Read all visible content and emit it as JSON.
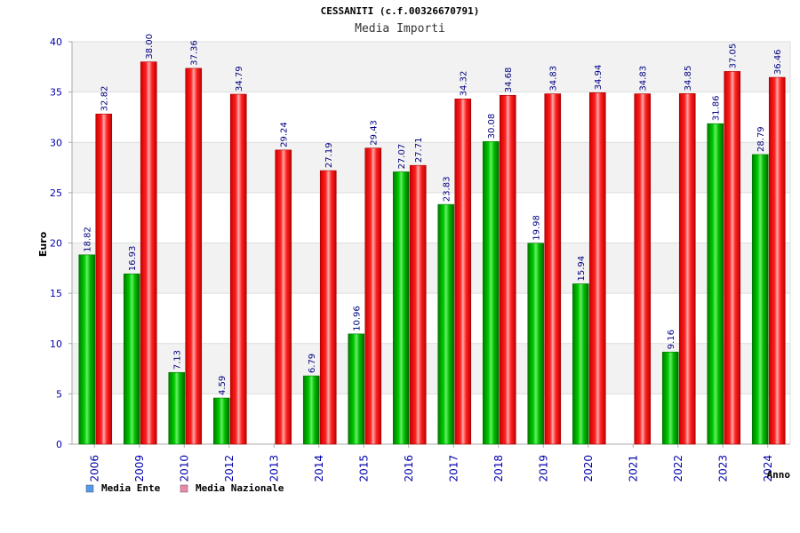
{
  "chart_data": {
    "type": "bar",
    "title": "CESSANITI (c.f.00326670791)",
    "subtitle": "Media Importi",
    "xlabel": "Anno",
    "ylabel": "Euro",
    "ylim": [
      0,
      40
    ],
    "yticks": [
      "0",
      "5",
      "10",
      "15",
      "20",
      "25",
      "30",
      "35",
      "40"
    ],
    "grid": true,
    "categories": [
      "2006",
      "2009",
      "2010",
      "2012",
      "2013",
      "2014",
      "2015",
      "2016",
      "2017",
      "2018",
      "2019",
      "2020",
      "2021",
      "2022",
      "2023",
      "2024"
    ],
    "series": [
      {
        "name": "Media Ente",
        "color": "#00aa00",
        "values": [
          18.82,
          16.93,
          7.13,
          4.59,
          null,
          6.79,
          10.96,
          27.07,
          23.83,
          30.08,
          19.98,
          15.94,
          null,
          9.16,
          31.86,
          28.79
        ],
        "labels": [
          "18.82",
          "16.93",
          "7.13",
          "4.59",
          "",
          "6.79",
          "10.96",
          "27.07",
          "23.83",
          "30.08",
          "19.98",
          "15.94",
          "",
          "9.16",
          "31.86",
          "28.79"
        ]
      },
      {
        "name": "Media Nazionale",
        "color": "#ee1111",
        "values": [
          32.82,
          38.0,
          37.36,
          34.79,
          29.24,
          27.19,
          29.43,
          27.71,
          34.32,
          34.68,
          34.83,
          34.94,
          34.83,
          34.85,
          37.05,
          36.46
        ],
        "labels": [
          "32.82",
          "38.00",
          "37.36",
          "34.79",
          "29.24",
          "27.19",
          "29.43",
          "27.71",
          "34.32",
          "34.68",
          "34.83",
          "34.94",
          "34.83",
          "34.85",
          "37.05",
          "36.46"
        ]
      }
    ],
    "legend": [
      {
        "label": "Media Ente",
        "swatch": "#5599ee"
      },
      {
        "label": "Media Nazionale",
        "swatch": "#ee88aa"
      }
    ],
    "legend_position": "bottom-left"
  }
}
